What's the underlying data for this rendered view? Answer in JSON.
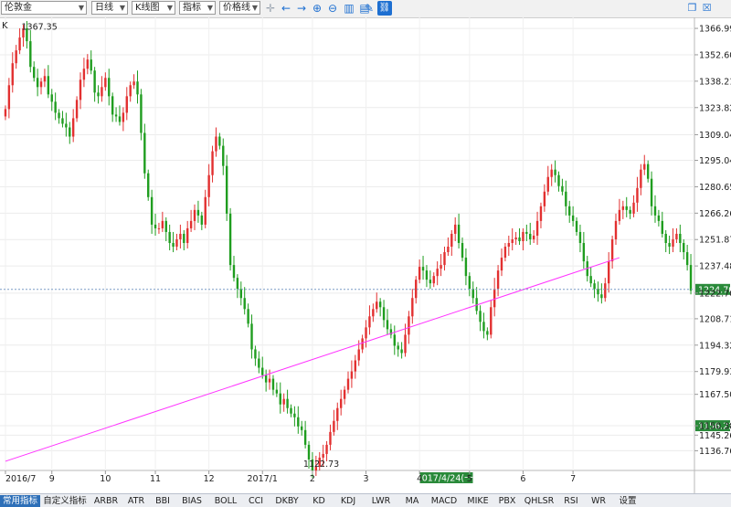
{
  "toolbar": {
    "symbol": "伦敦金",
    "period": "日线",
    "chart_type": "K线图",
    "indicator": "指标",
    "price_line": "价格线",
    "colors": {
      "accent": "#1d6fd1"
    },
    "icons": [
      "crosshair-icon",
      "arrow-left-icon",
      "arrow-right-icon",
      "zoom-in-icon",
      "zoom-out-icon",
      "bar-chart-icon",
      "chart-settings-icon",
      "pencil-icon",
      "link-icon"
    ]
  },
  "window": {
    "restore_icon": "restore-icon",
    "close_icon": "close-icon"
  },
  "tabs": [
    "常用指标",
    "自定义指标",
    "ARBR",
    "ATR",
    "BBI",
    "BIAS",
    "BOLL",
    "CCI",
    "DKBY",
    "KD",
    "KDJ",
    "LWR",
    "MA",
    "MACD",
    "MIKE",
    "PBX",
    "QHLSR",
    "RSI",
    "WR",
    "设置"
  ],
  "chart_data": {
    "type": "candlestick",
    "title": "K",
    "y_ticks": [
      1366.99,
      1352.6,
      1338.21,
      1323.82,
      1309.04,
      1295.04,
      1280.65,
      1266.26,
      1251.87,
      1237.48,
      1222.7,
      1208.71,
      1194.32,
      1179.93,
      1167.5,
      1150.38,
      1145.26,
      1136.76
    ],
    "ylim": [
      1126.0,
      1373.0
    ],
    "x_ticks": [
      "2016/7",
      "9",
      "10",
      "11",
      "12",
      "2017/1",
      "2",
      "3",
      "4",
      "5",
      "6",
      "7"
    ],
    "x_tick_index": [
      0,
      13,
      28,
      42,
      57,
      72,
      86,
      101,
      116,
      130,
      145,
      159
    ],
    "cursor_date": "2017/4/24(一)",
    "cursor_index": 123,
    "current_price": 1224.7,
    "high_label": 1367.35,
    "low_label": 1122.73,
    "trendline": [
      {
        "index": 0,
        "value": 1131.0
      },
      {
        "index": 172,
        "value": 1242.0
      }
    ],
    "colors": {
      "up": "#e23030",
      "down": "#1f9d1f",
      "trend": "#ff33ff",
      "price_line": "#7a9cc6",
      "price_tag": "#2a8a3a",
      "cursor_tag": "#2a8a3a"
    },
    "closes": [
      1323,
      1336,
      1348,
      1355,
      1362,
      1367,
      1360,
      1346,
      1340,
      1335,
      1338,
      1341,
      1331,
      1327,
      1321,
      1318,
      1315,
      1313,
      1308,
      1318,
      1328,
      1339,
      1345,
      1350,
      1344,
      1332,
      1330,
      1335,
      1340,
      1330,
      1320,
      1319,
      1316,
      1321,
      1330,
      1336,
      1338,
      1331,
      1310,
      1288,
      1275,
      1260,
      1258,
      1258,
      1262,
      1256,
      1250,
      1248,
      1252,
      1255,
      1250,
      1258,
      1262,
      1268,
      1265,
      1260,
      1275,
      1287,
      1300,
      1308,
      1303,
      1292,
      1266,
      1238,
      1231,
      1225,
      1220,
      1214,
      1206,
      1192,
      1187,
      1182,
      1178,
      1174,
      1176,
      1170,
      1168,
      1162,
      1165,
      1160,
      1157,
      1155,
      1150,
      1148,
      1140,
      1132,
      1126,
      1128,
      1133,
      1135,
      1140,
      1147,
      1153,
      1160,
      1165,
      1170,
      1176,
      1180,
      1186,
      1192,
      1198,
      1204,
      1210,
      1214,
      1218,
      1215,
      1208,
      1203,
      1200,
      1194,
      1192,
      1190,
      1200,
      1210,
      1220,
      1230,
      1237,
      1235,
      1230,
      1228,
      1232,
      1236,
      1238,
      1245,
      1248,
      1255,
      1260,
      1250,
      1242,
      1232,
      1225,
      1220,
      1213,
      1207,
      1202,
      1200,
      1215,
      1225,
      1235,
      1242,
      1248,
      1250,
      1252,
      1253,
      1251,
      1256,
      1255,
      1252,
      1254,
      1262,
      1270,
      1278,
      1286,
      1290,
      1287,
      1281,
      1278,
      1270,
      1265,
      1262,
      1256,
      1250,
      1240,
      1232,
      1228,
      1225,
      1222,
      1220,
      1228,
      1240,
      1252,
      1262,
      1268,
      1270,
      1268,
      1266,
      1272,
      1280,
      1290,
      1293,
      1285,
      1270,
      1265,
      1262,
      1255,
      1250,
      1248,
      1252,
      1255,
      1250,
      1245,
      1238,
      1224
    ]
  }
}
